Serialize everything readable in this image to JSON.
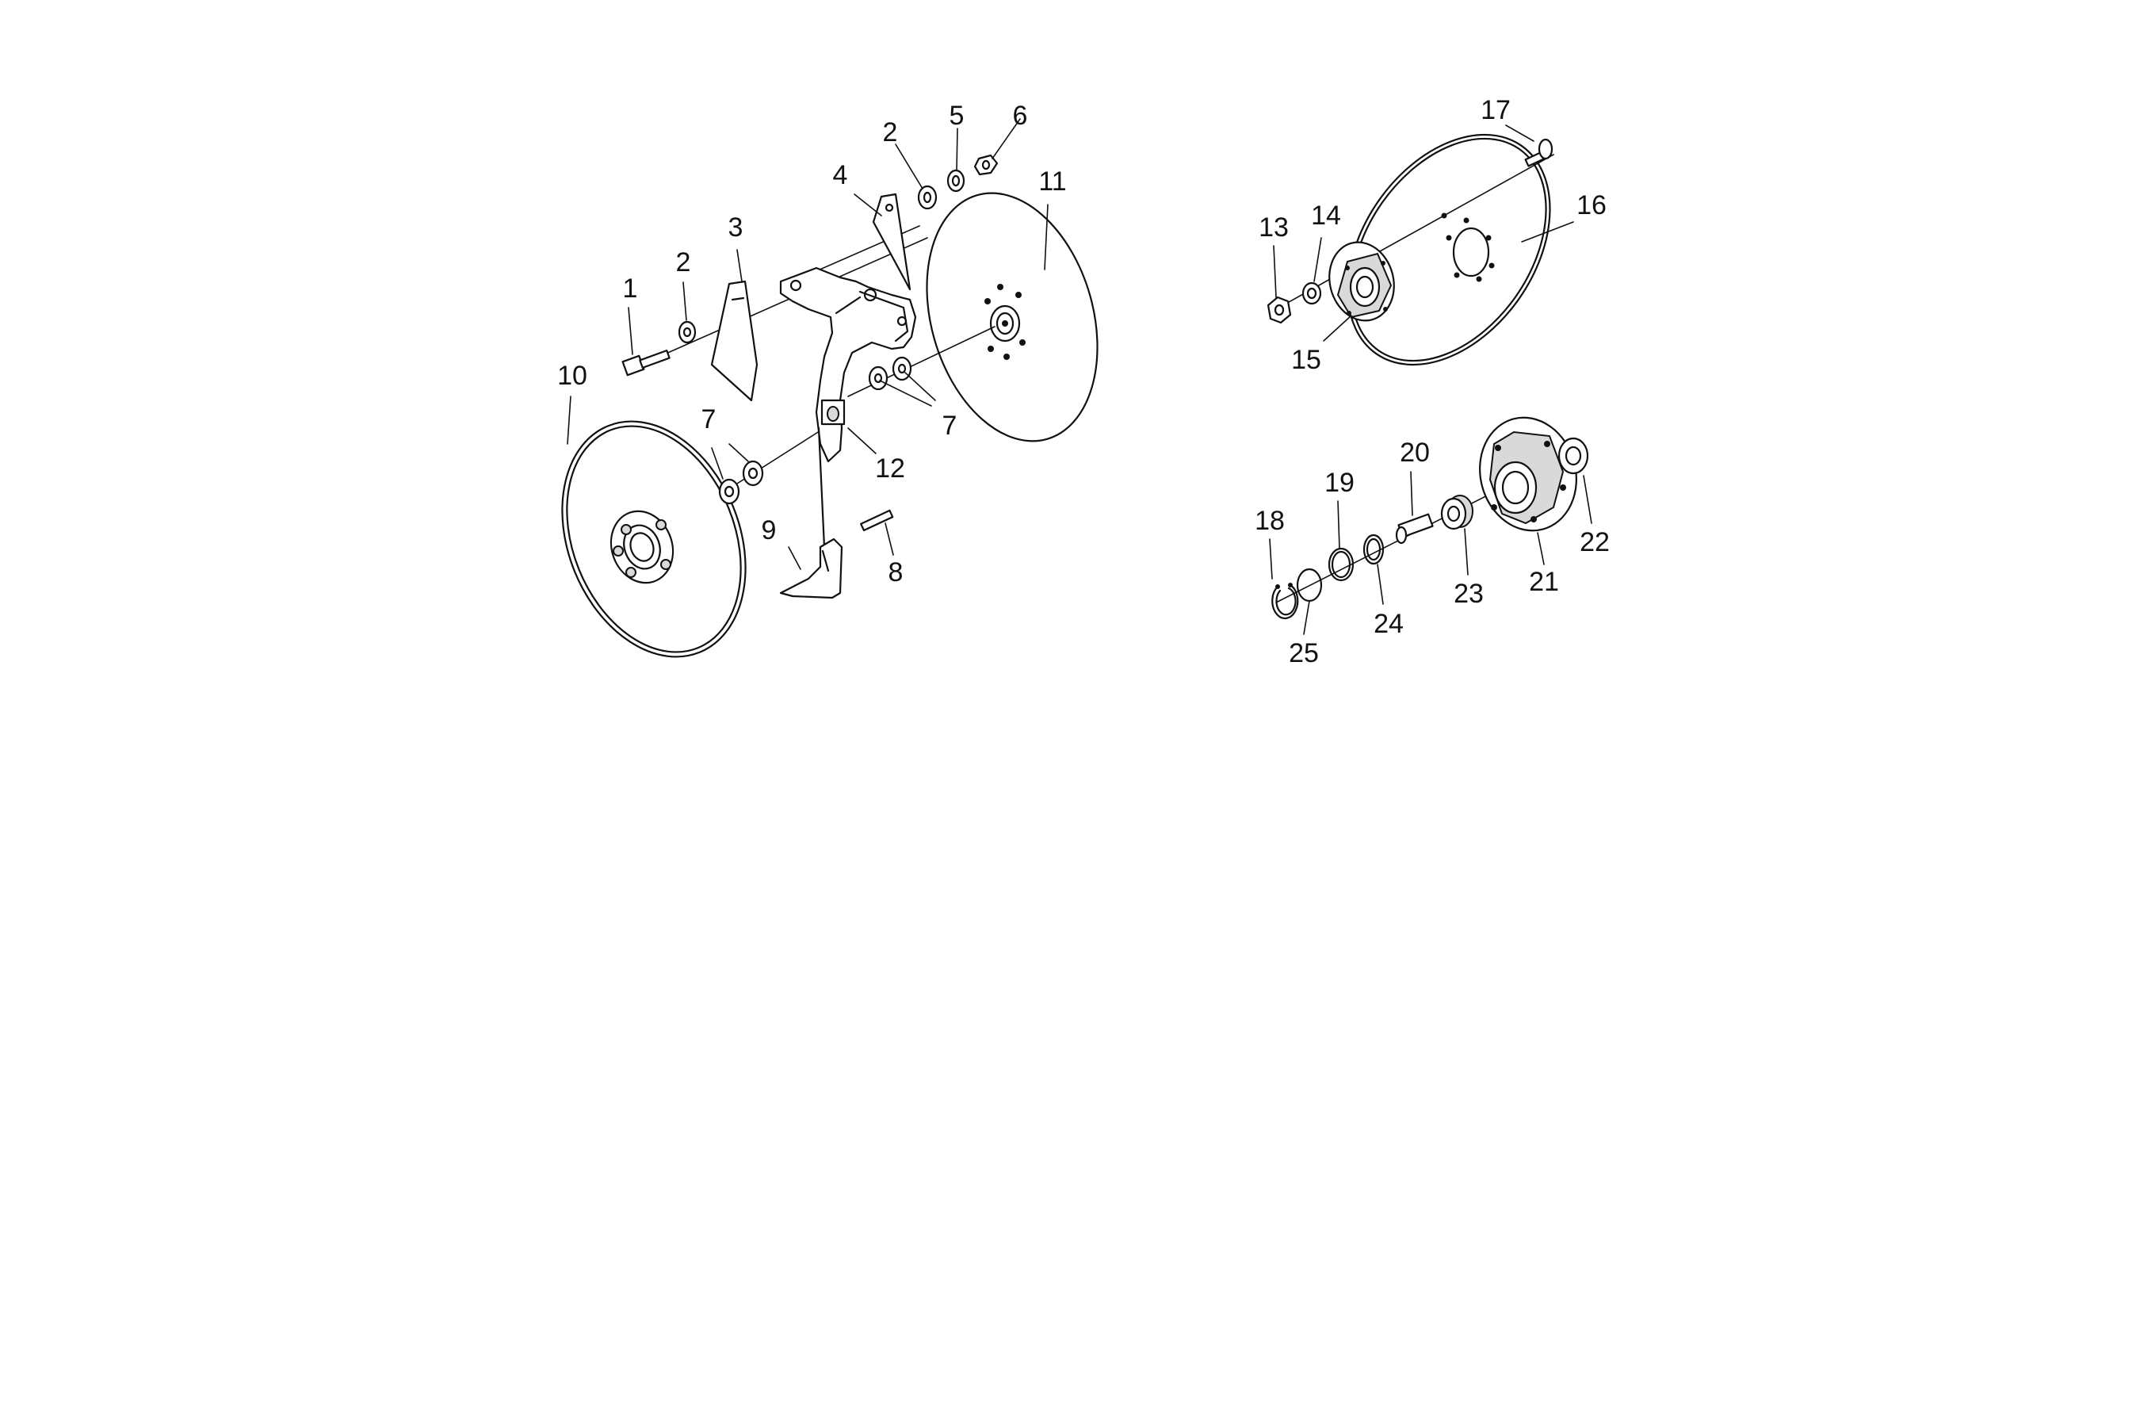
{
  "callouts": {
    "c1": "1",
    "c2a": "2",
    "c2b": "2",
    "c3": "3",
    "c4": "4",
    "c5": "5",
    "c6": "6",
    "c7a": "7",
    "c7b": "7",
    "c8": "8",
    "c9": "9",
    "c10": "10",
    "c11": "11",
    "c12": "12",
    "c13": "13",
    "c14": "14",
    "c15": "15",
    "c16": "16",
    "c17": "17",
    "c18": "18",
    "c19": "19",
    "c20": "20",
    "c21": "21",
    "c22": "22",
    "c23": "23",
    "c24": "24",
    "c25": "25"
  }
}
